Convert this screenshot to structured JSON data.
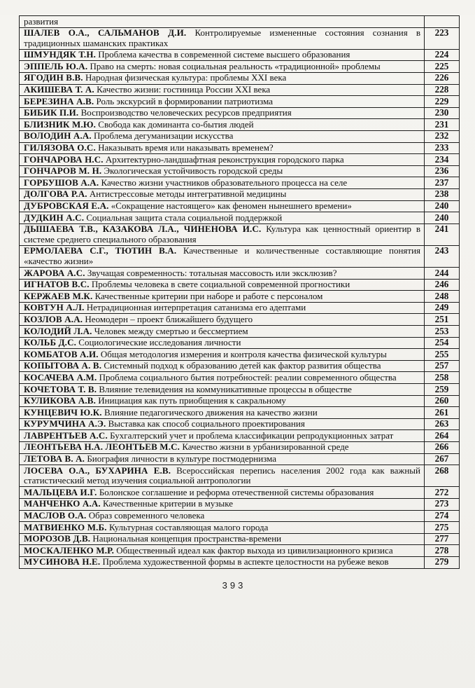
{
  "document": {
    "kind": "table-of-contents-scan",
    "language": "ru",
    "footer_page_number": "393",
    "ink_color": "#1d1d1d",
    "paper_color": "#f4f3ef"
  },
  "table": {
    "columns": [
      "entry",
      "page"
    ],
    "rows": [
      {
        "authors": "",
        "title": "развития",
        "page": ""
      },
      {
        "authors": "ШАЛЕВ О.А., САЛЬМАНОВ Д.И.",
        "title": "Контролируемые измененные состояния сознания в традиционных шаманских практиках",
        "page": "223"
      },
      {
        "authors": "ШМУНДЯК Т.Н.",
        "title": "Проблема качества в современной системе высшего образования",
        "page": "224"
      },
      {
        "authors": "ЭППЕЛЬ Ю.А.",
        "title": "Право на смерть: новая социальная реальность «традиционной» проблемы",
        "page": "225"
      },
      {
        "authors": "ЯГОДИН В.В.",
        "title": "Народная физическая культура: проблемы XXI века",
        "page": "226"
      },
      {
        "authors": "АКИШЕВА Т. А.",
        "title": "Качество жизни: гостиница России XXI века",
        "page": "228"
      },
      {
        "authors": "БЕРЕЗИНА А.В.",
        "title": "Роль экскурсий в формировании патриотизма",
        "page": "229"
      },
      {
        "authors": "БИБИК П.И.",
        "title": "Воспроизводство человеческих ресурсов предприятия",
        "page": "230"
      },
      {
        "authors": "БЛИЗНИК М.Ю.",
        "title": "Свобода как доминанта со-бытия людей",
        "page": "231"
      },
      {
        "authors": "ВОЛОДИН А.А.",
        "title": "Проблема дегуманизации искусства",
        "page": "232"
      },
      {
        "authors": "ГИЛЯЗОВА О.С.",
        "title": "Наказывать время или наказывать временем?",
        "page": "233"
      },
      {
        "authors": "ГОНЧАРОВА Н.С.",
        "title": "Архитектурно-ландшафтная реконструкция городского парка",
        "page": "234"
      },
      {
        "authors": "ГОНЧАРОВ М. Н.",
        "title": "Экологическая устойчивость городской среды",
        "page": "236"
      },
      {
        "authors": "ГОРБУШОВ А.А.",
        "title": "Качество жизни участников образовательного процесса на селе",
        "page": "237"
      },
      {
        "authors": "ДОЛГОВА Р.А.",
        "title": "Антистрессовые методы интегративной медицины",
        "page": "238"
      },
      {
        "authors": "ДУБРОВСКАЯ Е.А.",
        "title": "«Сокращение настоящего» как феномен нынешнего времени»",
        "page": "240"
      },
      {
        "authors": "ДУДКИН А.С.",
        "title": "Социальная защита стала социальной поддержкой",
        "page": "240"
      },
      {
        "authors": "ДЫШАЕВА Т.В., КАЗАКОВА Л.А., ЧИНЕНОВА И.С.",
        "title": "Культура как ценностный ориентир в системе среднего специального образования",
        "page": "241"
      },
      {
        "authors": "ЕРМОЛАЕВА С.Г., ТЮТИН В.А.",
        "title": "Качественные и количественные составляющие понятия «качество жизни»",
        "page": "243"
      },
      {
        "authors": "ЖАРОВА А.С.",
        "title": "Звучащая современность: тотальная массовость или эксклюзив?",
        "page": "244"
      },
      {
        "authors": "ИГНАТОВ В.С.",
        "title": "Проблемы человека в свете социальной современной прогностики",
        "page": "246"
      },
      {
        "authors": "КЕРЖАЕВ М.К.",
        "title": "Качественные критерии при наборе и работе с персоналом",
        "page": "248"
      },
      {
        "authors": "КОВТУН А.Л.",
        "title": "Нетрадиционная интерпретация сатанизма его адептами",
        "page": "249"
      },
      {
        "authors": "КОЗЛОВ А.А.",
        "title": "Неомодерн – проект ближайшего будущего",
        "page": "251"
      },
      {
        "authors": "КОЛОДИЙ Л.А.",
        "title": "Человек между смертью и бессмертием",
        "page": "253"
      },
      {
        "authors": "КОЛЬБ Д.С.",
        "title": "Социологические исследования личности",
        "page": "254"
      },
      {
        "authors": "КОМБАТОВ А.И.",
        "title": "Общая методология измерения и контроля качества физической культуры",
        "page": "255"
      },
      {
        "authors": "КОПЫТОВА А. В.",
        "title": "Системный подход к образованию детей как фактор развития общества",
        "page": "257"
      },
      {
        "authors": "КОСАЧЕВА А.М.",
        "title": "Проблема социального бытия потребностей: реалии современного общества",
        "page": "258"
      },
      {
        "authors": "КОЧЕТОВА Т. В.",
        "title": "Влияние телевидения на коммуникативные процессы  в обществе",
        "page": "259"
      },
      {
        "authors": "КУЛИКОВА А.В.",
        "title": "Инициация как путь приобщения к сакральному",
        "page": "260"
      },
      {
        "authors": "КУНЦЕВИЧ Ю.К.",
        "title": "Влияние педагогического движения на качество жизни",
        "page": "261"
      },
      {
        "authors": "КУРУМЧИНА А.Э.",
        "title": "Выставка как способ социального проектирования",
        "page": "263"
      },
      {
        "authors": "ЛАВРЕНТЬЕВ А.С.",
        "title": "Бухгалтерский учет и проблема классификации  репродукционных затрат",
        "page": "264"
      },
      {
        "authors": "ЛЕОНТЬЕВА Н.А. ЛЕОНТЬЕВ М.С.",
        "title": "Качество жизни в урбанизированной среде",
        "page": "266"
      },
      {
        "authors": "ЛЕТОВА В. А.",
        "title": "Биография личности в культуре постмодернизма",
        "page": "267"
      },
      {
        "authors": "ЛОСЕВА О.А., БУХАРИНА Е.В.",
        "title": "Всероссийская перепись населения 2002 года как важный статистический метод изучения социальной антропологии",
        "page": "268"
      },
      {
        "authors": "МАЛЬЦЕВА И.Г.",
        "title": "Болонское соглашение и реформа отечественной системы образования",
        "page": "272"
      },
      {
        "authors": "МАНЧЕНКО А.А.",
        "title": "Качественные критерии в музыке",
        "page": "273"
      },
      {
        "authors": "МАСЛОВ О.А.",
        "title": "Образ современного человека",
        "page": "274"
      },
      {
        "authors": "МАТВИЕНКО М.Б.",
        "title": "Культурная составляющая малого города",
        "page": "275"
      },
      {
        "authors": "МОРОЗОВ Д.В.",
        "title": "Национальная  концепция пространства-времени",
        "page": "277"
      },
      {
        "authors": "МОСКАЛЕНКО М.Р.",
        "title": "Общественный идеал как фактор выхода из цивилизационного кризиса",
        "page": "278"
      },
      {
        "authors": "МУСИНОВА Н.Е.",
        "title": "Проблема художественной формы в аспекте целостности на рубеже веков",
        "page": "279"
      }
    ]
  }
}
